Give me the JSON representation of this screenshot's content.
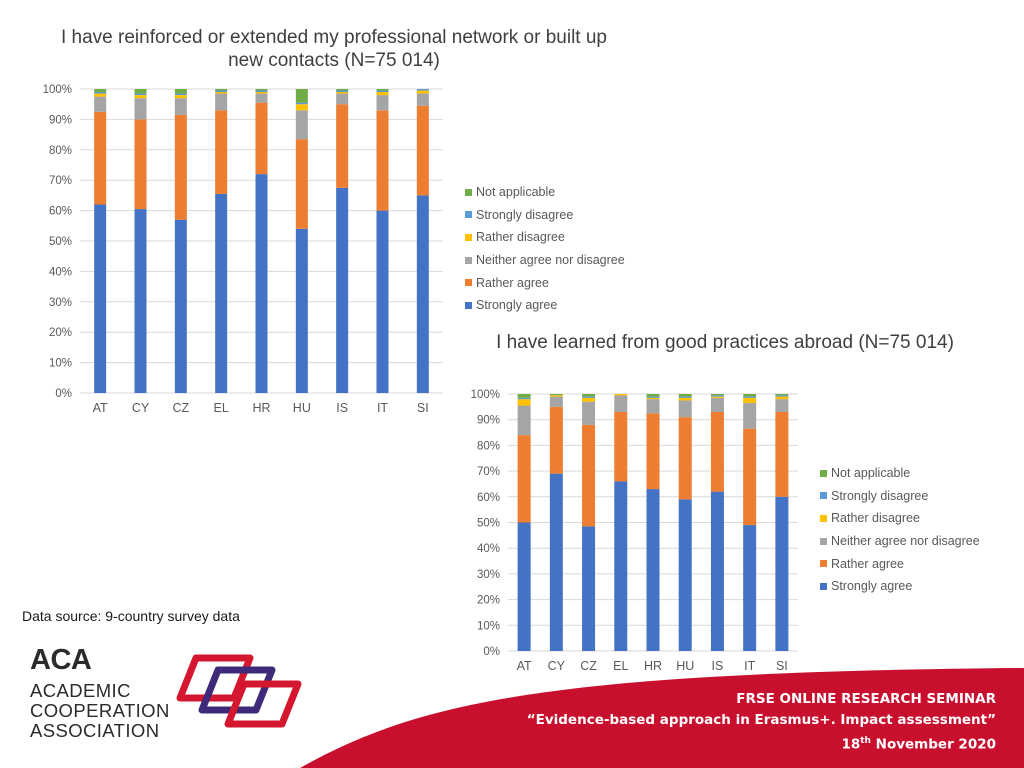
{
  "chart_data": [
    {
      "type": "bar",
      "stacked": true,
      "title": "I have reinforced or extended my professional network or built up new contacts (N=75 014)",
      "categories": [
        "AT",
        "CY",
        "CZ",
        "EL",
        "HR",
        "HU",
        "IS",
        "IT",
        "SI"
      ],
      "ylim": [
        0,
        100
      ],
      "y_tick_labels": [
        "0%",
        "10%",
        "20%",
        "30%",
        "40%",
        "50%",
        "60%",
        "70%",
        "80%",
        "90%",
        "100%"
      ],
      "grid": true,
      "legend_position": "right",
      "series": [
        {
          "name": "Strongly agree",
          "color": "#4472C4",
          "values": [
            62,
            60.5,
            57,
            65.5,
            72,
            54,
            67.5,
            60,
            65
          ]
        },
        {
          "name": "Rather agree",
          "color": "#ED7D31",
          "values": [
            30.5,
            29.5,
            34.5,
            27.5,
            23.5,
            29.5,
            27.5,
            33,
            29.5
          ]
        },
        {
          "name": "Neither agree nor disagree",
          "color": "#A5A5A5",
          "values": [
            5,
            7,
            5.5,
            5.5,
            3,
            9.5,
            3.5,
            5,
            4
          ]
        },
        {
          "name": "Rather disagree",
          "color": "#FFC000",
          "values": [
            1,
            1,
            1,
            0.5,
            0.5,
            2,
            0.5,
            1,
            1
          ]
        },
        {
          "name": "Strongly disagree",
          "color": "#5B9BD5",
          "values": [
            0.5,
            0.5,
            0.5,
            0.5,
            0.5,
            0.5,
            0.5,
            0.5,
            0.5
          ]
        },
        {
          "name": "Not applicable",
          "color": "#70AD47",
          "values": [
            1,
            1.5,
            1.5,
            0.5,
            0.5,
            4.5,
            0.5,
            0.5,
            0
          ]
        }
      ]
    },
    {
      "type": "bar",
      "stacked": true,
      "title": "I have learned from good practices abroad (N=75 014)",
      "categories": [
        "AT",
        "CY",
        "CZ",
        "EL",
        "HR",
        "HU",
        "IS",
        "IT",
        "SI"
      ],
      "ylim": [
        0,
        100
      ],
      "y_tick_labels": [
        "0%",
        "10%",
        "20%",
        "30%",
        "40%",
        "50%",
        "60%",
        "70%",
        "80%",
        "90%",
        "100%"
      ],
      "grid": true,
      "legend_position": "right",
      "series": [
        {
          "name": "Strongly agree",
          "color": "#4472C4",
          "values": [
            50,
            69,
            48.5,
            66,
            63,
            59,
            62,
            49,
            60
          ]
        },
        {
          "name": "Rather agree",
          "color": "#ED7D31",
          "values": [
            34,
            26,
            39.5,
            27,
            29.5,
            32,
            31,
            37.5,
            33
          ]
        },
        {
          "name": "Neither agree nor disagree",
          "color": "#A5A5A5",
          "values": [
            11.5,
            4,
            9,
            6.5,
            5.5,
            6.5,
            5.5,
            10,
            5
          ]
        },
        {
          "name": "Rather disagree",
          "color": "#FFC000",
          "values": [
            2.5,
            0.5,
            1.5,
            0.5,
            0.5,
            1,
            0.5,
            2,
            1
          ]
        },
        {
          "name": "Strongly disagree",
          "color": "#5B9BD5",
          "values": [
            0.5,
            0,
            0.5,
            0,
            0.5,
            0.5,
            0.5,
            0.5,
            0.5
          ]
        },
        {
          "name": "Not applicable",
          "color": "#70AD47",
          "values": [
            1.5,
            0.5,
            1,
            0,
            1,
            1,
            0.5,
            1,
            0.5
          ]
        }
      ]
    }
  ],
  "source_note": "Data source: 9-country survey data",
  "logo": {
    "acronym": "ACA",
    "lines": [
      "ACADEMIC",
      "COOPERATION",
      "ASSOCIATION"
    ]
  },
  "footer": {
    "line1": "FRSE ONLINE RESEARCH SEMINAR",
    "line2": "“Evidence-based approach in Erasmus+. Impact assessment”",
    "date_day": "18",
    "date_suffix": "th",
    "date_rest": " November 2020",
    "band_color": "#C8102E"
  }
}
